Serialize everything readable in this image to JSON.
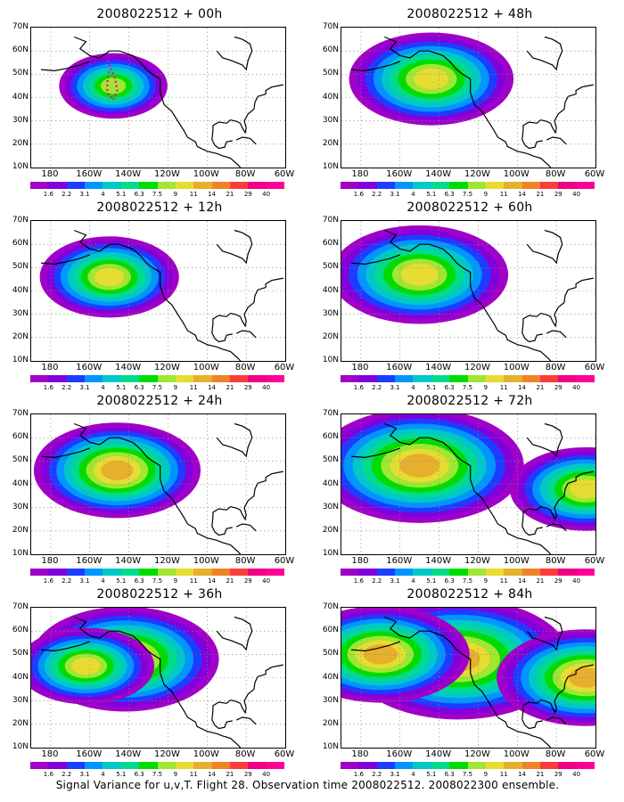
{
  "panels": [
    {
      "title": "2008022512 + 00h",
      "col": 0,
      "row": 0,
      "hotspots": [
        {
          "lon": -148,
          "lat": 45,
          "level": 7
        }
      ],
      "spread": 0.5
    },
    {
      "title": "2008022512 + 12h",
      "col": 0,
      "row": 1,
      "hotspots": [
        {
          "lon": -150,
          "lat": 46,
          "level": 8
        }
      ],
      "spread": 0.8
    },
    {
      "title": "2008022512 + 24h",
      "col": 0,
      "row": 2,
      "hotspots": [
        {
          "lon": -146,
          "lat": 46,
          "level": 9
        }
      ],
      "spread": 1.0
    },
    {
      "title": "2008022512 + 36h",
      "col": 0,
      "row": 3,
      "hotspots": [
        {
          "lon": -142,
          "lat": 48,
          "level": 9
        },
        {
          "lon": -162,
          "lat": 45,
          "level": 8
        }
      ],
      "spread": 1.3
    },
    {
      "title": "2008022512 + 48h",
      "col": 1,
      "row": 0,
      "hotspots": [
        {
          "lon": -144,
          "lat": 48,
          "level": 8
        }
      ],
      "spread": 1.2
    },
    {
      "title": "2008022512 + 60h",
      "col": 1,
      "row": 1,
      "hotspots": [
        {
          "lon": -150,
          "lat": 47,
          "level": 8
        }
      ],
      "spread": 1.4
    },
    {
      "title": "2008022512 + 72h",
      "col": 1,
      "row": 2,
      "hotspots": [
        {
          "lon": -150,
          "lat": 48,
          "level": 9
        },
        {
          "lon": -65,
          "lat": 38,
          "level": 8
        }
      ],
      "spread": 1.6
    },
    {
      "title": "2008022512 + 84h",
      "col": 1,
      "row": 3,
      "hotspots": [
        {
          "lon": -130,
          "lat": 48,
          "level": 9
        },
        {
          "lon": -170,
          "lat": 50,
          "level": 9
        },
        {
          "lon": -65,
          "lat": 40,
          "level": 9
        }
      ],
      "spread": 1.8
    }
  ],
  "lat_ticks": [
    "10N",
    "20N",
    "30N",
    "40N",
    "50N",
    "60N",
    "70N"
  ],
  "lon_ticks": [
    "180",
    "160W",
    "140W",
    "120W",
    "100W",
    "80W",
    "60W"
  ],
  "colorbar": {
    "labels": [
      "1.6",
      "2.2",
      "3.1",
      "4",
      "5.1",
      "6.3",
      "7.5",
      "9",
      "11",
      "14",
      "21",
      "29",
      "40"
    ],
    "colors": [
      "#a000c8",
      "#8200dc",
      "#1e3cff",
      "#0096ff",
      "#00c8c8",
      "#00dc8c",
      "#00dc00",
      "#a0e632",
      "#e6dc32",
      "#e6af2d",
      "#f08228",
      "#fa3c3c",
      "#f00082",
      "#ff0096"
    ]
  },
  "caption": "Signal Variance for u,v,T. Flight 28. Observation time 2008022512. 2008022300 ensemble."
}
